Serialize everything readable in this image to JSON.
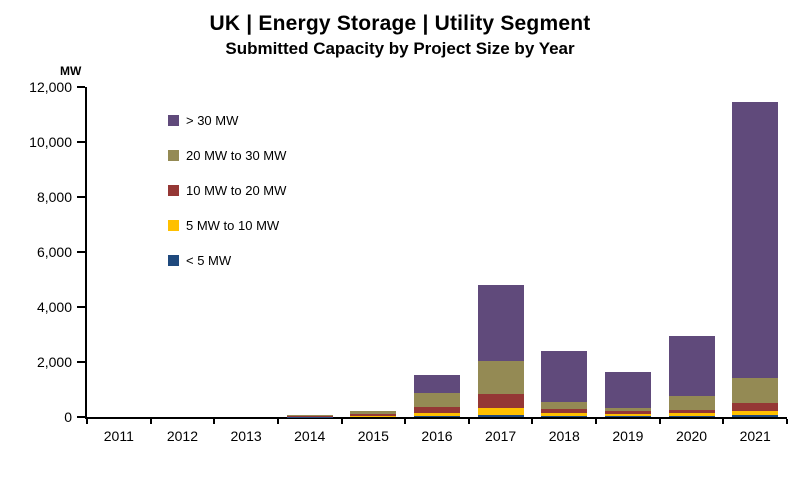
{
  "header": {
    "title": "UK | Energy Storage | Utility Segment",
    "subtitle": "Submitted Capacity by Project Size by Year"
  },
  "chart_data": {
    "type": "bar",
    "stacked": true,
    "title": "UK | Energy Storage | Utility Segment",
    "subtitle": "Submitted Capacity by Project Size by Year",
    "unit_label": "MW",
    "categories": [
      "2011",
      "2012",
      "2013",
      "2014",
      "2015",
      "2016",
      "2017",
      "2018",
      "2019",
      "2020",
      "2021"
    ],
    "series": [
      {
        "name": "< 5 MW",
        "color": "#1f497d",
        "values": [
          0,
          0,
          0,
          10,
          20,
          40,
          80,
          30,
          30,
          30,
          60
        ]
      },
      {
        "name": "5 MW to 10 MW",
        "color": "#ffc000",
        "values": [
          0,
          0,
          0,
          10,
          30,
          120,
          250,
          120,
          80,
          100,
          150
        ]
      },
      {
        "name": "10 MW to 20 MW",
        "color": "#953735",
        "values": [
          0,
          0,
          0,
          30,
          50,
          200,
          500,
          150,
          120,
          120,
          300
        ]
      },
      {
        "name": "20 MW to 30 MW",
        "color": "#948a54",
        "values": [
          0,
          0,
          0,
          20,
          120,
          500,
          1200,
          250,
          100,
          500,
          900
        ]
      },
      {
        "name": "> 30 MW",
        "color": "#604a7b",
        "values": [
          0,
          0,
          0,
          0,
          0,
          650,
          2770,
          1850,
          1320,
          2200,
          10040
        ]
      }
    ],
    "legend_order": [
      "> 30 MW",
      "20 MW to 30 MW",
      "10 MW to 20 MW",
      "5 MW to 10 MW",
      "< 5 MW"
    ],
    "ylim": [
      0,
      12000
    ],
    "ytick_step": 2000,
    "yticks": [
      "0",
      "2,000",
      "4,000",
      "6,000",
      "8,000",
      "10,000",
      "12,000"
    ],
    "grid": false,
    "legend_position": "top-left-inside"
  }
}
